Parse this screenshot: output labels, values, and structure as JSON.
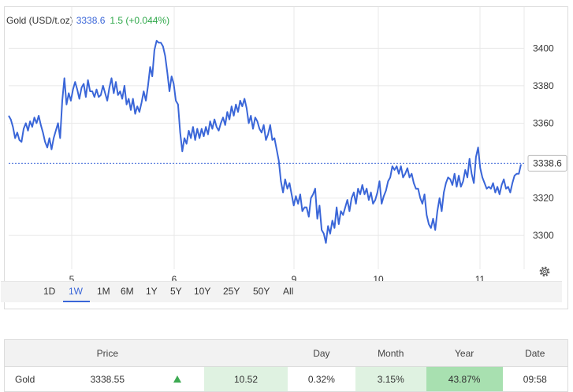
{
  "header": {
    "instrument": "Gold (USD/t.oz)",
    "price": "3338.6",
    "change": "1.5 (+0.044%)"
  },
  "price_label": "3338.6",
  "colors": {
    "line": "#3a66d8",
    "up": "#2fa84a",
    "grid": "#e8e8e8"
  },
  "icons": {
    "settings": "gear-icon",
    "trend": "up-triangle-icon"
  },
  "ranges": [
    "1D",
    "1W",
    "1M",
    "6M",
    "1Y",
    "5Y",
    "10Y",
    "25Y",
    "50Y",
    "All"
  ],
  "active_range": "1W",
  "chart_data": {
    "type": "line",
    "x_ticks": [
      "5",
      "6",
      "9",
      "10",
      "11"
    ],
    "y_ticks": [
      "3400",
      "3380",
      "3360",
      "3320",
      "3300"
    ],
    "ylim": [
      3282,
      3422
    ],
    "last_value": 3338.6,
    "grid": true,
    "series": [
      {
        "values": [
          3364,
          3362,
          3358,
          3352,
          3355,
          3351,
          3350,
          3357,
          3360,
          3356,
          3361,
          3358,
          3363,
          3360,
          3364,
          3359,
          3355,
          3350,
          3347,
          3352,
          3346,
          3352,
          3356,
          3360,
          3352,
          3372,
          3384,
          3370,
          3376,
          3372,
          3378,
          3382,
          3378,
          3373,
          3379,
          3381,
          3374,
          3383,
          3377,
          3377,
          3374,
          3378,
          3374,
          3375,
          3380,
          3376,
          3372,
          3379,
          3384,
          3376,
          3382,
          3375,
          3377,
          3373,
          3380,
          3370,
          3373,
          3367,
          3373,
          3365,
          3369,
          3366,
          3371,
          3377,
          3372,
          3380,
          3390,
          3385,
          3399,
          3404,
          3403,
          3403,
          3401,
          3396,
          3387,
          3377,
          3385,
          3381,
          3372,
          3370,
          3355,
          3345,
          3352,
          3349,
          3356,
          3352,
          3358,
          3351,
          3357,
          3352,
          3357,
          3353,
          3358,
          3354,
          3361,
          3357,
          3362,
          3358,
          3356,
          3360,
          3363,
          3359,
          3366,
          3362,
          3369,
          3364,
          3370,
          3366,
          3372,
          3369,
          3373,
          3368,
          3360,
          3364,
          3357,
          3363,
          3361,
          3357,
          3355,
          3359,
          3351,
          3354,
          3359,
          3351,
          3352,
          3346,
          3340,
          3329,
          3323,
          3330,
          3325,
          3328,
          3322,
          3316,
          3321,
          3317,
          3322,
          3313,
          3315,
          3315,
          3310,
          3320,
          3322,
          3325,
          3309,
          3316,
          3303,
          3301,
          3296,
          3305,
          3301,
          3308,
          3304,
          3315,
          3306,
          3313,
          3311,
          3315,
          3319,
          3313,
          3320,
          3323,
          3317,
          3325,
          3322,
          3327,
          3322,
          3325,
          3319,
          3323,
          3317,
          3319,
          3323,
          3329,
          3317,
          3321,
          3324,
          3329,
          3331,
          3337,
          3335,
          3337,
          3333,
          3337,
          3331,
          3333,
          3336,
          3331,
          3333,
          3328,
          3325,
          3325,
          3320,
          3317,
          3322,
          3311,
          3306,
          3304,
          3309,
          3303,
          3313,
          3320,
          3313,
          3323,
          3328,
          3331,
          3330,
          3327,
          3333,
          3326,
          3332,
          3326,
          3329,
          3335,
          3331,
          3341,
          3333,
          3328,
          3342,
          3347,
          3336,
          3331,
          3328,
          3325,
          3326,
          3325,
          3328,
          3323,
          3326,
          3322,
          3327,
          3330,
          3325,
          3326,
          3323,
          3328,
          3332,
          3333,
          3333,
          3338
        ]
      }
    ]
  },
  "table": {
    "columns": [
      "",
      "Price",
      "",
      "",
      "Day",
      "Month",
      "Year",
      "Date"
    ],
    "row": {
      "name": "Gold",
      "price": "3338.55",
      "change": "10.52",
      "day": "0.32%",
      "month": "3.15%",
      "year": "43.87%",
      "date": "09:58"
    }
  }
}
